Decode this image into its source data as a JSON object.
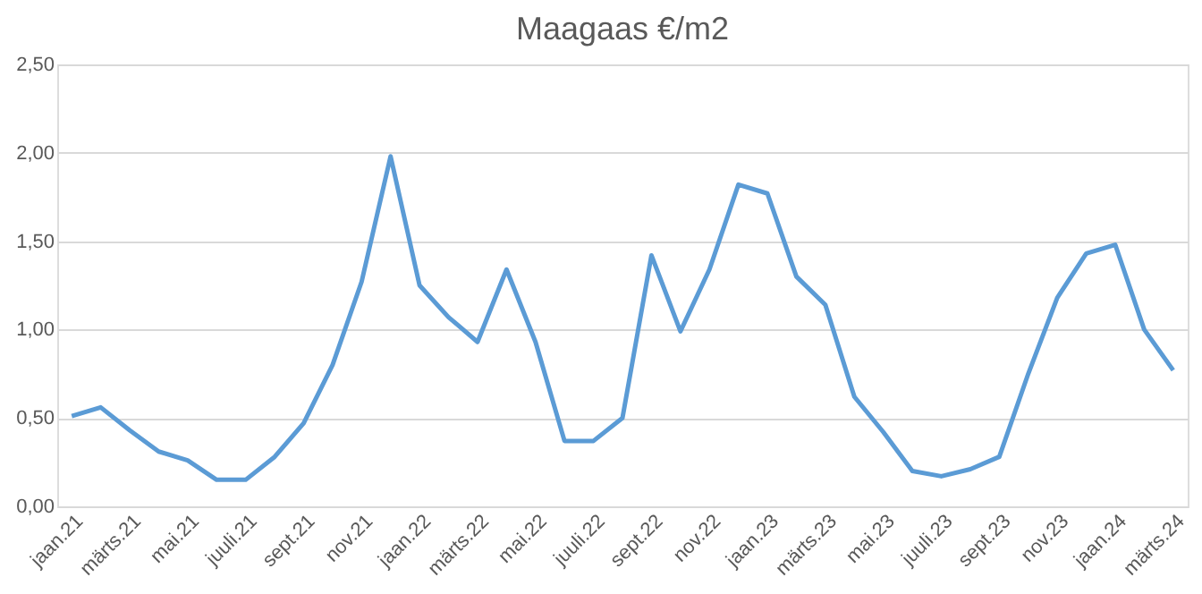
{
  "chart_data": {
    "type": "line",
    "title": "Maagaas €/m2",
    "categories": [
      "jaan.21",
      null,
      "märts.21",
      null,
      "mai.21",
      null,
      "juuli.21",
      null,
      "sept.21",
      null,
      "nov.21",
      null,
      "jaan.22",
      null,
      "märts.22",
      null,
      "mai.22",
      null,
      "juuli.22",
      null,
      "sept.22",
      null,
      "nov.22",
      null,
      "jaan.23",
      null,
      "märts.23",
      null,
      "mai.23",
      null,
      "juuli.23",
      null,
      "sept.23",
      null,
      "nov.23",
      null,
      "jaan.24",
      null,
      "märts.24"
    ],
    "series": [
      {
        "color": "#5b9bd5",
        "values": [
          0.51,
          0.56,
          0.43,
          0.31,
          0.26,
          0.15,
          0.15,
          0.28,
          0.47,
          0.8,
          1.27,
          1.98,
          1.25,
          1.07,
          0.93,
          1.34,
          0.93,
          0.37,
          0.37,
          0.5,
          1.42,
          0.99,
          1.34,
          1.82,
          1.77,
          1.3,
          1.14,
          0.62,
          0.42,
          0.2,
          0.17,
          0.21,
          0.28,
          0.75,
          1.18,
          1.43,
          1.48,
          1.0,
          0.77
        ]
      }
    ],
    "ylim": [
      0,
      2.5
    ],
    "yticks": [
      {
        "value": 0,
        "label": "0,00"
      },
      {
        "value": 0.5,
        "label": "0,50"
      },
      {
        "value": 1,
        "label": "1,00"
      },
      {
        "value": 1.5,
        "label": "1,50"
      },
      {
        "value": 2,
        "label": "2,00"
      },
      {
        "value": 2.5,
        "label": "2,50"
      }
    ],
    "grid": "y",
    "marker": "none",
    "line_style": "solid"
  }
}
